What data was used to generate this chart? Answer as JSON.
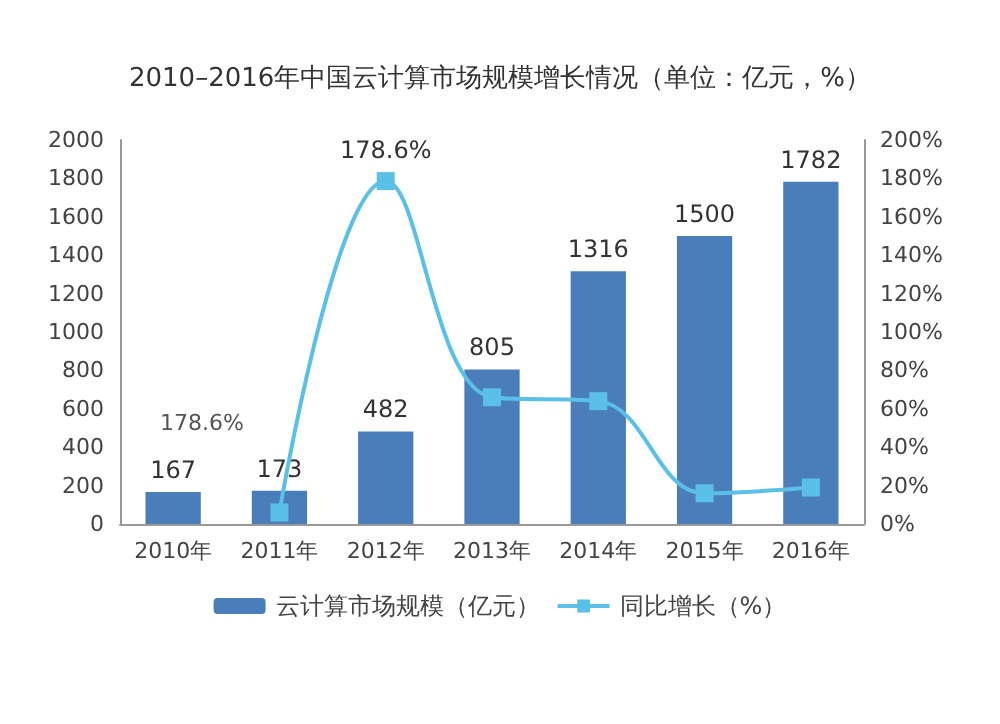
{
  "chart_data": {
    "type": "bar",
    "title": "2010–2016年中国云计算市场规模增长情况（单位：亿元，%）",
    "categories": [
      "2010年",
      "2011年",
      "2012年",
      "2013年",
      "2014年",
      "2015年",
      "2016年"
    ],
    "series": [
      {
        "name": "云计算市场规模（亿元）",
        "type": "bar",
        "color": "#4a7ebb",
        "values": [
          167,
          173,
          482,
          805,
          1316,
          1500,
          1782
        ],
        "data_labels": true
      },
      {
        "name": "同比增长（%）",
        "type": "line",
        "axis": "y2",
        "color": "#5bc0e8",
        "values": [
          null,
          6,
          178.6,
          66,
          64,
          16,
          19
        ],
        "value_labels": [
          null,
          null,
          "178.6%",
          null,
          null,
          null,
          null
        ]
      }
    ],
    "ylim": [
      0,
      2000
    ],
    "yticks": [
      0,
      200,
      400,
      600,
      800,
      1000,
      1200,
      1400,
      1600,
      1800,
      2000
    ],
    "y2lim": [
      0,
      200
    ],
    "y2ticks": [
      {
        "value": 0,
        "label": "0%"
      },
      {
        "value": 20,
        "label": "20%"
      },
      {
        "value": 40,
        "label": "40%"
      },
      {
        "value": 60,
        "label": "60%"
      },
      {
        "value": 80,
        "label": "80%"
      },
      {
        "value": 100,
        "label": "100%"
      },
      {
        "value": 120,
        "label": "120%"
      },
      {
        "value": 140,
        "label": "140%"
      },
      {
        "value": 160,
        "label": "160%"
      },
      {
        "value": 180,
        "label": "180%"
      },
      {
        "value": 200,
        "label": "200%"
      }
    ],
    "annotations": [
      "178.6%"
    ],
    "grid": false,
    "legend": "bottom",
    "marker": "square",
    "line_style": "solid"
  }
}
